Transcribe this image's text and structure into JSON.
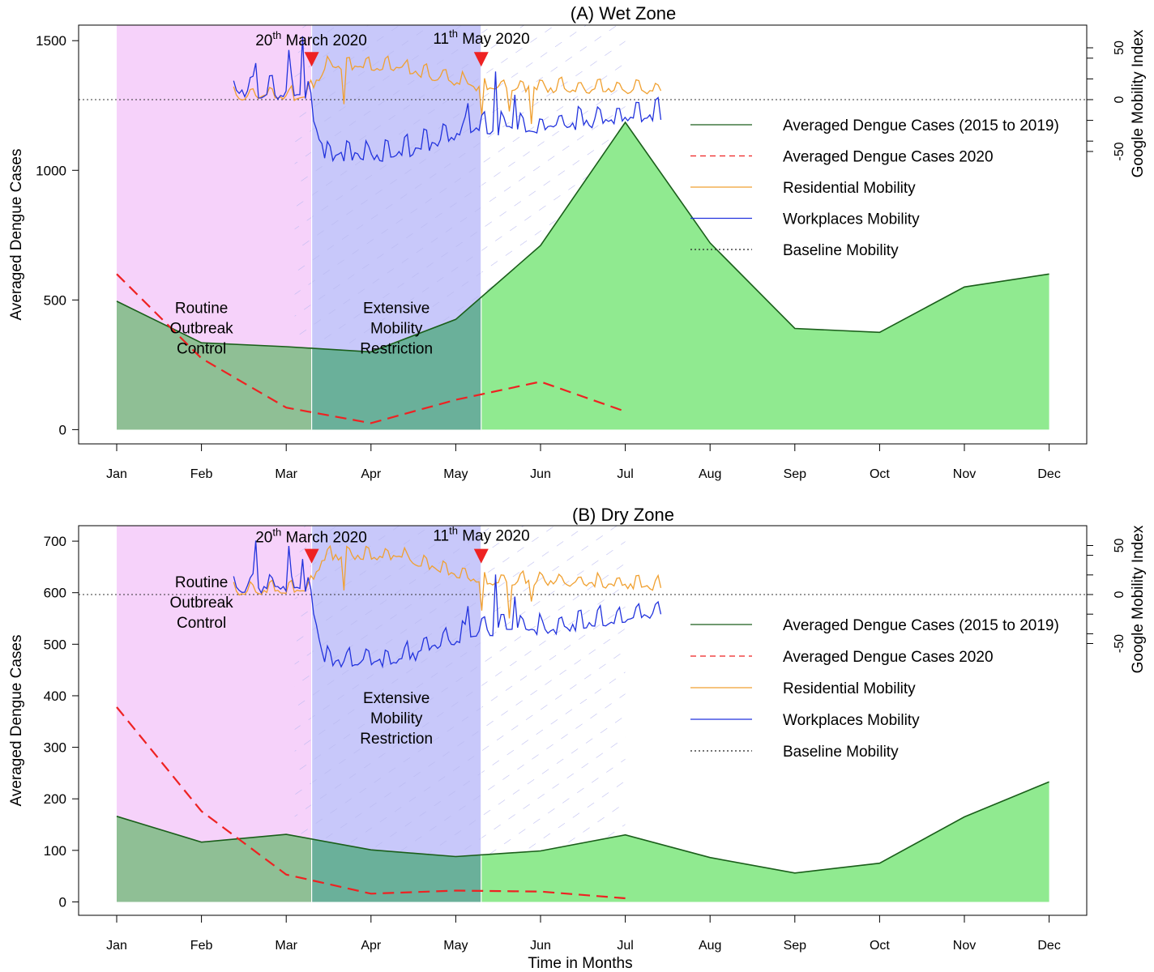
{
  "chart_data": [
    {
      "type": "area",
      "title": "(A) Wet Zone",
      "xlabel": "",
      "ylabel": "Averaged Dengue Cases",
      "y2label": "Google Mobility Index",
      "categories": [
        "Jan",
        "Feb",
        "Mar",
        "Apr",
        "May",
        "Jun",
        "Jul",
        "Aug",
        "Sep",
        "Oct",
        "Nov",
        "Dec"
      ],
      "yticks": [
        0,
        500,
        1000,
        1500
      ],
      "ylim": [
        -55,
        1560
      ],
      "y2ticks": [
        -50,
        0,
        50
      ],
      "y2lim": [
        -200,
        80
      ],
      "y2ticks_minor": [
        -40,
        -20,
        0,
        20,
        40
      ],
      "series": [
        {
          "name": "Averaged Dengue Cases (2015 to 2019)",
          "values": [
            495,
            335,
            320,
            300,
            425,
            710,
            1185,
            720,
            390,
            375,
            550,
            600
          ]
        },
        {
          "name": "Averaged Dengue Cases 2020",
          "values": [
            600,
            275,
            85,
            25,
            115,
            185,
            70,
            null,
            null,
            null,
            null,
            null
          ]
        }
      ],
      "mobility": {
        "residential": {
          "start": 1.38,
          "end": 6.42,
          "pre": 2,
          "lock": 30,
          "post": 10,
          "late": 7
        },
        "workplaces": {
          "start": 1.38,
          "end": 6.42,
          "pre": 5,
          "lock": -55,
          "post": -30,
          "late": -15
        }
      },
      "phases": {
        "routine": {
          "start": 0,
          "end": 2.3
        },
        "restriction": {
          "start": 2.3,
          "end": 4.3
        },
        "hatch_end": 6.0
      },
      "annotations": {
        "march_base": "20",
        "march_sup": "th",
        "march_rest": " March 2020",
        "may_base": "11",
        "may_sup": "th",
        "may_rest": " May 2020",
        "routine_lines": [
          "Routine",
          "Outbreak",
          "Control"
        ],
        "restriction_lines": [
          "Extensive",
          "Mobility",
          "Restriction"
        ],
        "routine_label_y": 300,
        "restriction_label_y": 300
      },
      "legend_position": "top-right",
      "legend": [
        "Averaged Dengue Cases (2015 to 2019)",
        "Averaged Dengue Cases 2020",
        "Residential Mobility",
        "Workplaces Mobility",
        "Baseline Mobility"
      ]
    },
    {
      "type": "area",
      "title": "(B) Dry Zone",
      "xlabel": "Time in Months",
      "ylabel": "Averaged Dengue Cases",
      "y2label": "Google Mobility Index",
      "categories": [
        "Jan",
        "Feb",
        "Mar",
        "Apr",
        "May",
        "Jun",
        "Jul",
        "Aug",
        "Sep",
        "Oct",
        "Nov",
        "Dec"
      ],
      "yticks": [
        0,
        100,
        200,
        300,
        400,
        500,
        600,
        700
      ],
      "ylim": [
        -26,
        730
      ],
      "y2ticks": [
        -50,
        0,
        50
      ],
      "y2lim": [
        -320,
        80
      ],
      "y2ticks_minor": [
        -40,
        -20,
        0,
        20,
        40
      ],
      "series": [
        {
          "name": "Averaged Dengue Cases (2015 to 2019)",
          "values": [
            166,
            116,
            131,
            101,
            88,
            99,
            130,
            86,
            56,
            75,
            165,
            233
          ]
        },
        {
          "name": "Averaged Dengue Cases 2020",
          "values": [
            378,
            176,
            53,
            16,
            22,
            20,
            7,
            null,
            null,
            null,
            null,
            null
          ]
        }
      ],
      "mobility": {
        "residential": {
          "start": 1.38,
          "end": 6.42,
          "pre": 2,
          "lock": 38,
          "post": 12,
          "late": 7
        },
        "workplaces": {
          "start": 1.38,
          "end": 6.42,
          "pre": 5,
          "lock": -70,
          "post": -38,
          "late": -22
        }
      },
      "phases": {
        "routine": {
          "start": 0,
          "end": 2.3
        },
        "restriction": {
          "start": 2.3,
          "end": 4.3
        },
        "hatch_end": 6.0
      },
      "annotations": {
        "march_base": "20",
        "march_sup": "th",
        "march_rest": " March 2020",
        "may_base": "11",
        "may_sup": "th",
        "may_rest": " May 2020",
        "routine_lines": [
          "Routine",
          "Outbreak",
          "Control"
        ],
        "restriction_lines": [
          "Extensive",
          "Mobility",
          "Restriction"
        ],
        "routine_label_y": 535,
        "restriction_label_y": 310
      },
      "legend_position": "top-right",
      "legend": [
        "Averaged Dengue Cases (2015 to 2019)",
        "Averaged Dengue Cases 2020",
        "Residential Mobility",
        "Workplaces Mobility",
        "Baseline Mobility"
      ]
    }
  ],
  "colors": {
    "historical_line": "#1a5e1a",
    "historical_fill_dark": "#8fbf95",
    "historical_fill_light": "#90ea90",
    "dengue_2020": "#ee2222",
    "residential": "#f0a030",
    "workplaces": "#2233dd",
    "baseline": "#333333",
    "routine_band": "#f6d2fa",
    "restriction_band": "#c8c8fa",
    "hatch": "#b8b8ee",
    "marker": "#ee2222"
  }
}
